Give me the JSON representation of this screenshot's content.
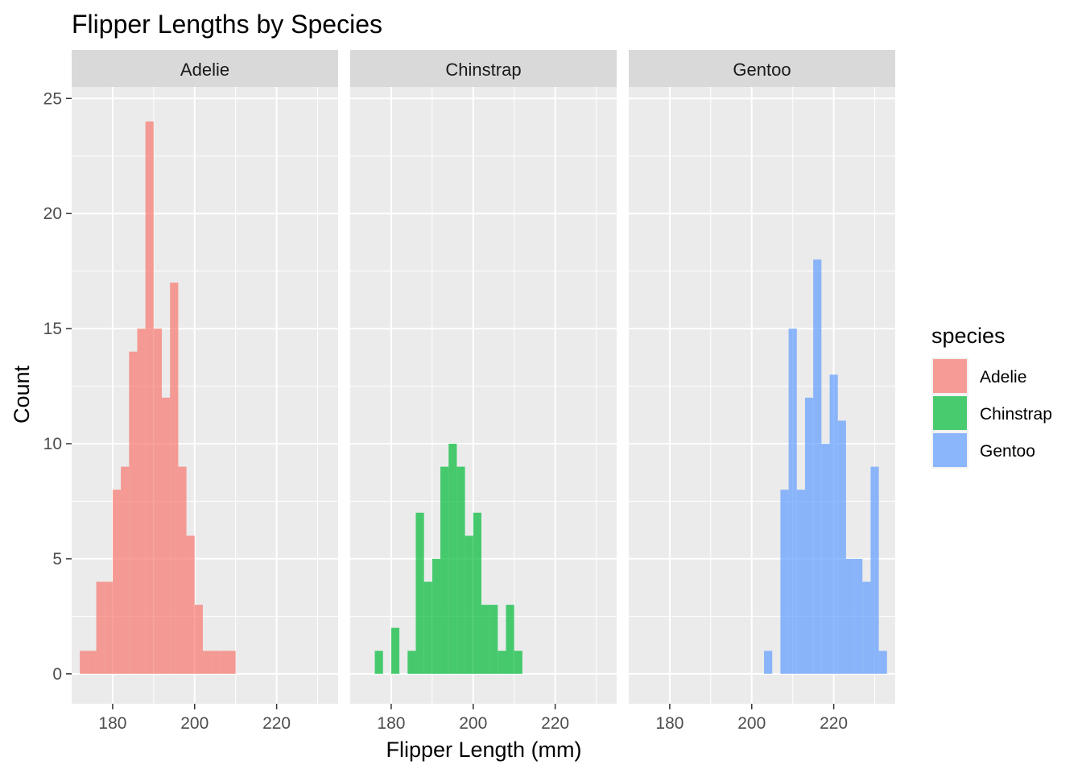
{
  "chart_data": {
    "type": "bar",
    "subtype": "faceted-histogram",
    "title": "Flipper Lengths by Species",
    "xlabel": "Flipper Length (mm)",
    "ylabel": "Count",
    "xlim": [
      170,
      235
    ],
    "ylim": [
      -1.3,
      25.5
    ],
    "xticks": [
      180,
      200,
      220
    ],
    "yticks": [
      0,
      5,
      10,
      15,
      20,
      25
    ],
    "grid": true,
    "bin_width": 2,
    "bar_opacity": 0.7,
    "legend": {
      "title": "species",
      "position": "right",
      "entries": [
        "Adelie",
        "Chinstrap",
        "Gentoo"
      ]
    },
    "panels": [
      {
        "name": "Adelie",
        "color": "#F8766D",
        "bins": [
          {
            "x0": 172,
            "x1": 174,
            "count": 1
          },
          {
            "x0": 174,
            "x1": 176,
            "count": 1
          },
          {
            "x0": 176,
            "x1": 178,
            "count": 4
          },
          {
            "x0": 178,
            "x1": 180,
            "count": 4
          },
          {
            "x0": 180,
            "x1": 182,
            "count": 8
          },
          {
            "x0": 182,
            "x1": 184,
            "count": 9
          },
          {
            "x0": 184,
            "x1": 186,
            "count": 14
          },
          {
            "x0": 186,
            "x1": 188,
            "count": 15
          },
          {
            "x0": 188,
            "x1": 190,
            "count": 24
          },
          {
            "x0": 190,
            "x1": 192,
            "count": 15
          },
          {
            "x0": 192,
            "x1": 194,
            "count": 12
          },
          {
            "x0": 194,
            "x1": 196,
            "count": 17
          },
          {
            "x0": 196,
            "x1": 198,
            "count": 9
          },
          {
            "x0": 198,
            "x1": 200,
            "count": 6
          },
          {
            "x0": 200,
            "x1": 202,
            "count": 3
          },
          {
            "x0": 202,
            "x1": 204,
            "count": 1
          },
          {
            "x0": 204,
            "x1": 206,
            "count": 1
          },
          {
            "x0": 206,
            "x1": 208,
            "count": 1
          },
          {
            "x0": 208,
            "x1": 210,
            "count": 1
          }
        ]
      },
      {
        "name": "Chinstrap",
        "color": "#00BA38",
        "bins": [
          {
            "x0": 176,
            "x1": 178,
            "count": 1
          },
          {
            "x0": 178,
            "x1": 180,
            "count": 0
          },
          {
            "x0": 180,
            "x1": 182,
            "count": 2
          },
          {
            "x0": 182,
            "x1": 184,
            "count": 0
          },
          {
            "x0": 184,
            "x1": 186,
            "count": 1
          },
          {
            "x0": 186,
            "x1": 188,
            "count": 7
          },
          {
            "x0": 188,
            "x1": 190,
            "count": 4
          },
          {
            "x0": 190,
            "x1": 192,
            "count": 5
          },
          {
            "x0": 192,
            "x1": 194,
            "count": 9
          },
          {
            "x0": 194,
            "x1": 196,
            "count": 10
          },
          {
            "x0": 196,
            "x1": 198,
            "count": 9
          },
          {
            "x0": 198,
            "x1": 200,
            "count": 6
          },
          {
            "x0": 200,
            "x1": 202,
            "count": 7
          },
          {
            "x0": 202,
            "x1": 204,
            "count": 3
          },
          {
            "x0": 204,
            "x1": 206,
            "count": 3
          },
          {
            "x0": 206,
            "x1": 208,
            "count": 1
          },
          {
            "x0": 208,
            "x1": 210,
            "count": 3
          },
          {
            "x0": 210,
            "x1": 212,
            "count": 1
          }
        ]
      },
      {
        "name": "Gentoo",
        "color": "#619CFF",
        "bins": [
          {
            "x0": 203,
            "x1": 205,
            "count": 1
          },
          {
            "x0": 205,
            "x1": 207,
            "count": 0
          },
          {
            "x0": 207,
            "x1": 209,
            "count": 8
          },
          {
            "x0": 209,
            "x1": 211,
            "count": 15
          },
          {
            "x0": 211,
            "x1": 213,
            "count": 8
          },
          {
            "x0": 213,
            "x1": 215,
            "count": 12
          },
          {
            "x0": 215,
            "x1": 217,
            "count": 18
          },
          {
            "x0": 217,
            "x1": 219,
            "count": 10
          },
          {
            "x0": 219,
            "x1": 221,
            "count": 13
          },
          {
            "x0": 221,
            "x1": 223,
            "count": 11
          },
          {
            "x0": 223,
            "x1": 225,
            "count": 5
          },
          {
            "x0": 225,
            "x1": 227,
            "count": 5
          },
          {
            "x0": 227,
            "x1": 229,
            "count": 4
          },
          {
            "x0": 229,
            "x1": 231,
            "count": 9
          },
          {
            "x0": 231,
            "x1": 233,
            "count": 1
          }
        ]
      }
    ]
  }
}
